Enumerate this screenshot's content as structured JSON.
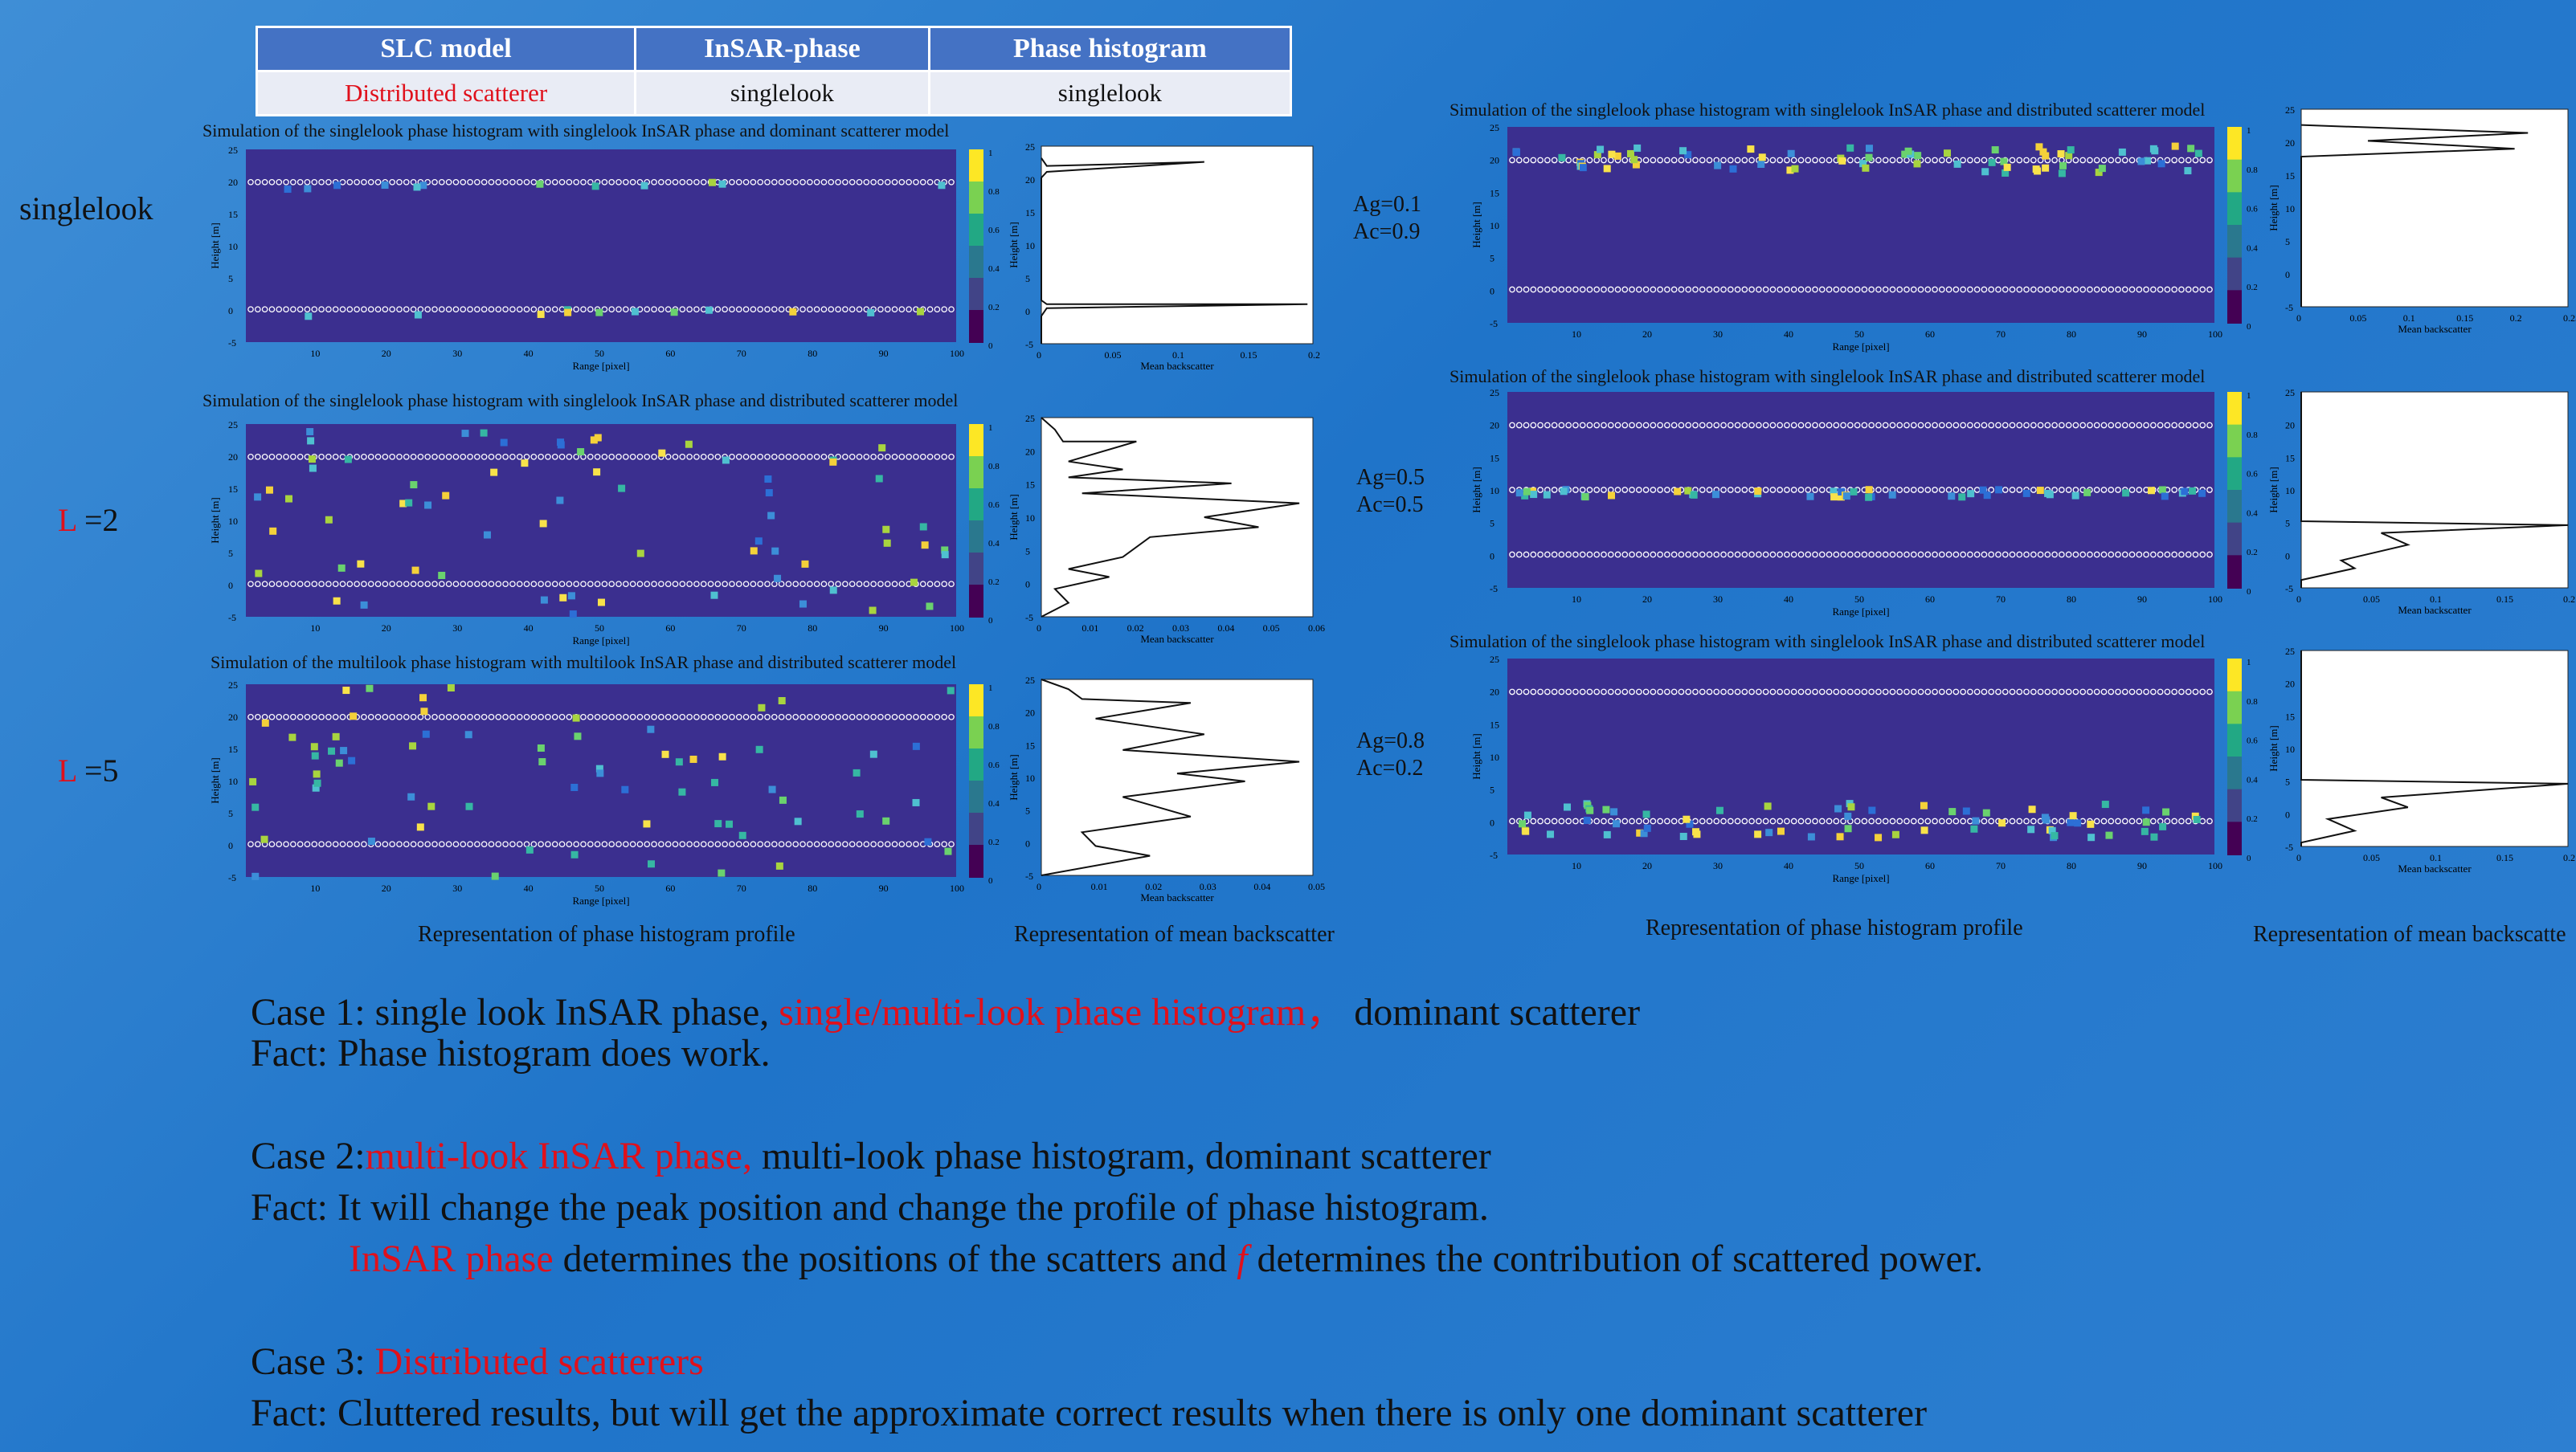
{
  "table": {
    "headers": [
      "SLC model",
      "InSAR-phase",
      "Phase histogram"
    ],
    "row": [
      "Distributed scatterer",
      "singlelook",
      "singlelook"
    ]
  },
  "row_labels": {
    "r1": "singlelook",
    "r2_prefix": "L",
    "r2_suffix": " =2",
    "r3_prefix": "L",
    "r3_suffix": " =5"
  },
  "params": [
    {
      "ag": "Ag=0.1",
      "ac": "Ac=0.9"
    },
    {
      "ag": "Ag=0.5",
      "ac": "Ac=0.5"
    },
    {
      "ag": "Ag=0.8",
      "ac": "Ac=0.2"
    }
  ],
  "captions": {
    "profile": "Representation of phase histogram profile",
    "backscatter": "Representation of mean backscatter",
    "profile2": "Representation of phase histogram profile",
    "backscatter2": "Representation of mean backscatte"
  },
  "plot_titles": {
    "l1": "Simulation of the singlelook phase histogram with singlelook InSAR phase and dominant scatterer model",
    "l2": "Simulation of the singlelook phase histogram with singlelook InSAR phase and distributed scatterer model",
    "l3": "Simulation of the multilook phase histogram with multilook InSAR phase and distributed scatterer model",
    "r1": "Simulation of the singlelook phase histogram with singlelook InSAR phase and distributed scatterer model",
    "r2": "Simulation of the singlelook phase histogram with singlelook InSAR phase and distributed scatterer model",
    "r3": "Simulation of the singlelook phase histogram with singlelook InSAR phase and distributed scatterer model"
  },
  "axes": {
    "range": "Range [pixel]",
    "height": "Height [m]",
    "mean": "Mean backscatter"
  },
  "text": {
    "case1_a": "Case 1: single look InSAR phase, ",
    "case1_b": "single/multi-look phase histogram，",
    "case1_c": " dominant scatterer",
    "fact1": "Fact: Phase histogram does work.",
    "case2_a": "Case 2:",
    "case2_b": "multi-look InSAR phase,",
    "case2_c": " multi-look phase histogram, dominant scatterer",
    "fact2": "Fact: It will change the peak position and change the profile of phase histogram.",
    "fact2b_a": "InSAR phase",
    "fact2b_b": " determines the positions of the scatters and ",
    "fact2b_c": "f",
    "fact2b_d": " determines the contribution of scattered power.",
    "case3_a": "Case 3: ",
    "case3_b": "Distributed scatterers",
    "fact3": "Fact: Cluttered results, but will get the approximate correct results when there is only one dominant scatterer"
  },
  "colors": {
    "background": "#1f74c9",
    "table_header": "#4472c4",
    "accent_red": "#e0101b",
    "plot_bg": "#3b2f8f"
  }
}
